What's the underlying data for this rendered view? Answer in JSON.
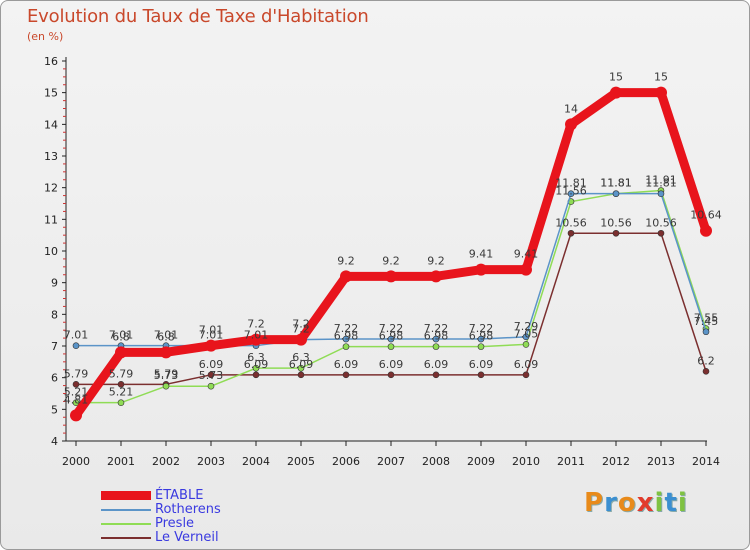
{
  "title": "Evolution du Taux de Taxe d'Habitation",
  "subtitle": "(en %)",
  "brand": "Proxiti",
  "chart_data": {
    "type": "line",
    "title": "Evolution du Taux de Taxe d'Habitation",
    "ylabel": "(en %)",
    "xlabel": "",
    "x": [
      "2000",
      "2001",
      "2002",
      "2003",
      "2004",
      "2005",
      "2006",
      "2007",
      "2008",
      "2009",
      "2010",
      "2011",
      "2012",
      "2013",
      "2014"
    ],
    "ylim": [
      4,
      16
    ],
    "yticks": [
      4,
      5,
      6,
      7,
      8,
      9,
      10,
      11,
      12,
      13,
      14,
      15,
      16
    ],
    "grid": false,
    "legend_position": "bottom-left",
    "series": [
      {
        "name": "ÉTABLE",
        "color": "#e8141c",
        "values": [
          4.81,
          6.8,
          6.8,
          7.01,
          7.2,
          7.2,
          9.2,
          9.2,
          9.2,
          9.41,
          9.41,
          14,
          15,
          15,
          10.64
        ],
        "labels": [
          "4.81",
          "6.8",
          "6.8",
          "7.01",
          "7.2",
          "7.2",
          "9.2",
          "9.2",
          "9.2",
          "9.41",
          "9.41",
          "14",
          "15",
          "15",
          "10.64"
        ]
      },
      {
        "name": "Rotherens",
        "color": "#5b94c8",
        "values": [
          7.01,
          7.01,
          7.01,
          7.01,
          7.01,
          7.2,
          7.22,
          7.22,
          7.22,
          7.22,
          7.29,
          11.81,
          11.81,
          11.81,
          7.45
        ],
        "labels": [
          "7.01",
          "7.01",
          "7.01",
          "7.01",
          "7.01",
          "7.2",
          "7.22",
          "7.22",
          "7.22",
          "7.22",
          "7.29",
          "11.81",
          "11.81",
          "11.81",
          "7.45"
        ]
      },
      {
        "name": "Presle",
        "color": "#8fdc55",
        "values": [
          5.21,
          5.21,
          5.73,
          5.73,
          6.3,
          6.3,
          6.98,
          6.98,
          6.98,
          6.98,
          7.05,
          11.56,
          11.81,
          11.91,
          7.55
        ],
        "labels": [
          "5.21",
          "5.21",
          "5.73",
          "5.73",
          "6.3",
          "6.3",
          "6.98",
          "6.98",
          "6.98",
          "6.98",
          "7.05",
          "11.56",
          "11.81",
          "11.91",
          "7.55"
        ]
      },
      {
        "name": "Le Verneil",
        "color": "#7b2f2f",
        "values": [
          5.79,
          5.79,
          5.79,
          6.09,
          6.09,
          6.09,
          6.09,
          6.09,
          6.09,
          6.09,
          6.09,
          10.56,
          10.56,
          10.56,
          6.2
        ],
        "labels": [
          "5.79",
          "5.79",
          "5.79",
          "6.09",
          "6.09",
          "6.09",
          "6.09",
          "6.09",
          "6.09",
          "6.09",
          "6.09",
          "10.56",
          "10.56",
          "10.56",
          "6.2"
        ]
      }
    ]
  }
}
